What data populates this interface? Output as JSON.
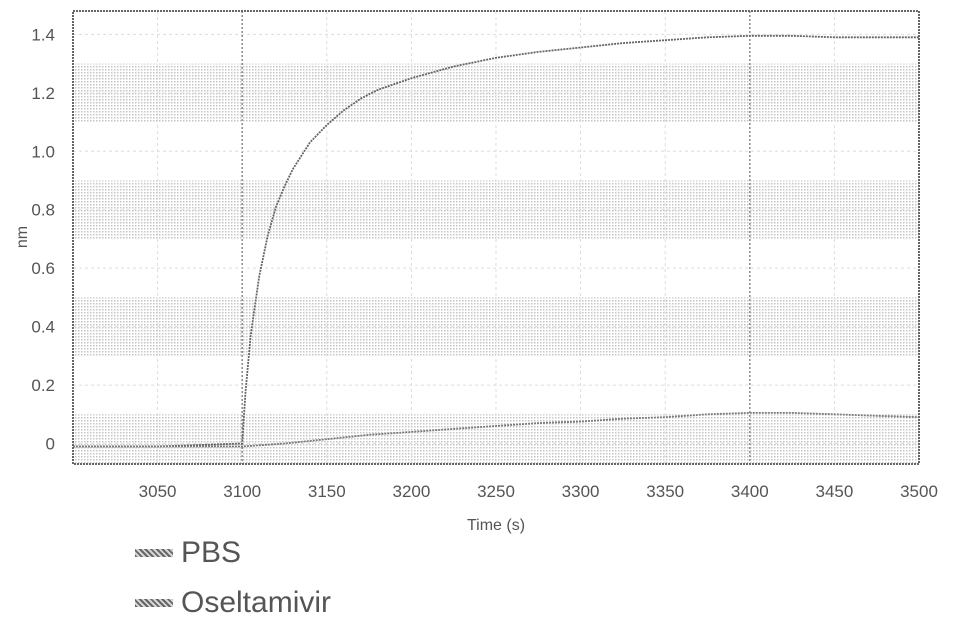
{
  "chart_data": {
    "type": "line",
    "xlabel": "Time (s)",
    "ylabel": "nm",
    "xlim": [
      3000,
      3500
    ],
    "ylim": [
      -0.07,
      1.48
    ],
    "x_ticks": [
      3050,
      3100,
      3150,
      3200,
      3250,
      3300,
      3350,
      3400,
      3450,
      3500
    ],
    "y_ticks": [
      {
        "value": 0,
        "label": "0"
      },
      {
        "value": 0.2,
        "label": "0.2"
      },
      {
        "value": 0.4,
        "label": "0.4"
      },
      {
        "value": 0.6,
        "label": "0.6"
      },
      {
        "value": 0.8,
        "label": "0.8"
      },
      {
        "value": 1.0,
        "label": "1.0"
      },
      {
        "value": 1.2,
        "label": "1.2"
      },
      {
        "value": 1.4,
        "label": "1.4"
      }
    ],
    "grid": true,
    "legend_position": "bottom-left",
    "series": [
      {
        "name": "PBS",
        "color": "#666666",
        "x": [
          3000,
          3050,
          3100,
          3102,
          3105,
          3110,
          3115,
          3120,
          3125,
          3130,
          3140,
          3150,
          3160,
          3170,
          3180,
          3200,
          3225,
          3250,
          3275,
          3300,
          3325,
          3350,
          3375,
          3400,
          3425,
          3450,
          3475,
          3500
        ],
        "y": [
          -0.01,
          -0.01,
          0.0,
          0.18,
          0.37,
          0.57,
          0.71,
          0.81,
          0.88,
          0.94,
          1.03,
          1.09,
          1.14,
          1.18,
          1.21,
          1.25,
          1.29,
          1.32,
          1.34,
          1.355,
          1.37,
          1.38,
          1.39,
          1.395,
          1.395,
          1.39,
          1.39,
          1.39
        ]
      },
      {
        "name": "Oseltamivir",
        "color": "#7a7a7a",
        "x": [
          3000,
          3050,
          3100,
          3125,
          3150,
          3175,
          3200,
          3225,
          3250,
          3275,
          3300,
          3325,
          3350,
          3375,
          3400,
          3425,
          3450,
          3475,
          3500
        ],
        "y": [
          -0.01,
          -0.01,
          -0.01,
          0.0,
          0.015,
          0.03,
          0.04,
          0.05,
          0.06,
          0.07,
          0.075,
          0.085,
          0.09,
          0.1,
          0.105,
          0.105,
          0.1,
          0.095,
          0.09
        ]
      }
    ]
  }
}
